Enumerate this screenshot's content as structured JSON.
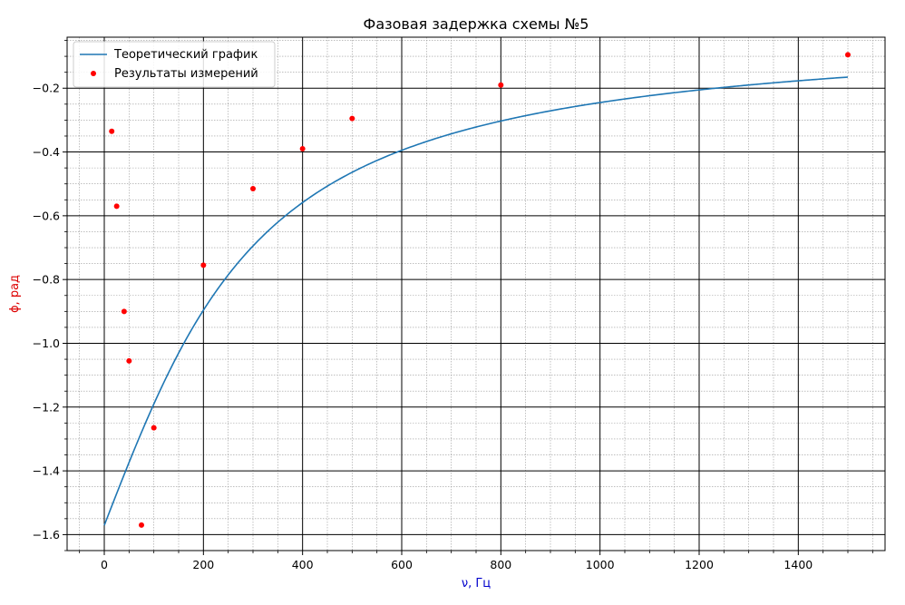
{
  "chart_data": {
    "type": "line",
    "title": "Фазовая задержка схемы №5",
    "xlabel": "ν, Гц",
    "ylabel": "ϕ, рад",
    "xlim": [
      -75,
      1575
    ],
    "ylim": [
      -1.65,
      -0.04
    ],
    "x_ticks": [
      0,
      200,
      400,
      600,
      800,
      1000,
      1200,
      1400
    ],
    "y_ticks": [
      -1.6,
      -1.4,
      -1.2,
      -1.0,
      -0.8,
      -0.6,
      -0.4,
      -0.2
    ],
    "grid": true,
    "minor_grid": true,
    "legend_position": "upper-left",
    "series": [
      {
        "name": "Теоретический график",
        "kind": "line",
        "color": "#1f77b4",
        "formula": "-arctan(250/x)",
        "x_range": [
          0,
          1500
        ]
      },
      {
        "name": "Результаты измерений",
        "kind": "scatter",
        "color": "#ff0000",
        "x": [
          15,
          25,
          40,
          50,
          75,
          100,
          200,
          300,
          400,
          500,
          800,
          1500
        ],
        "y": [
          -0.335,
          -0.57,
          -0.9,
          -1.055,
          -1.57,
          -1.265,
          -0.755,
          -0.515,
          -0.39,
          -0.295,
          -0.19,
          -0.095
        ]
      }
    ]
  }
}
